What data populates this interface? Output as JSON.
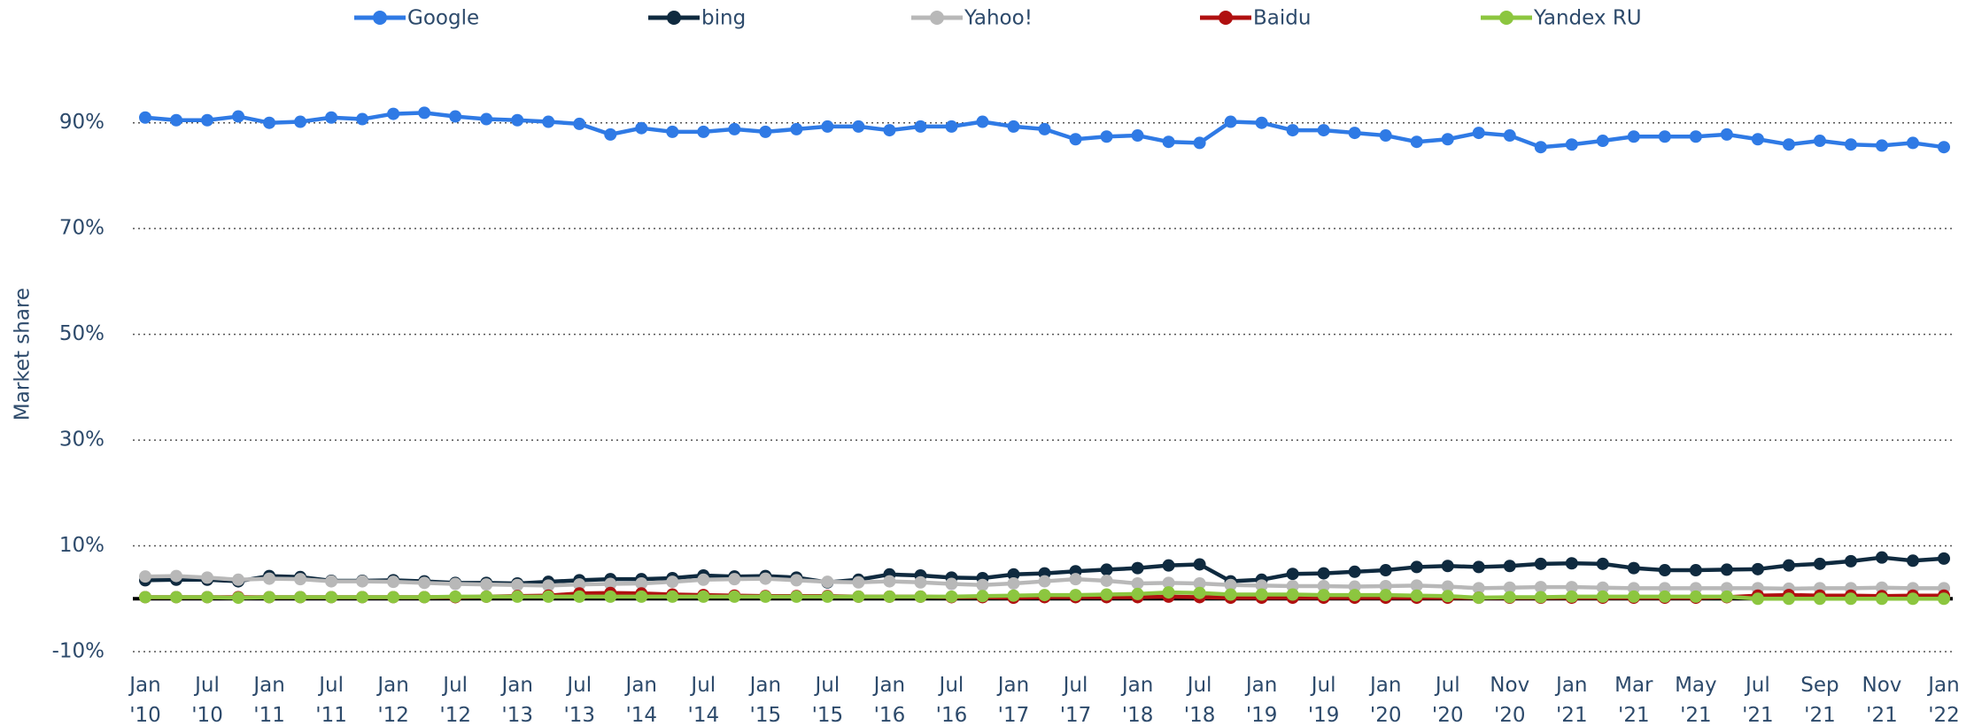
{
  "chart_data": {
    "type": "line",
    "y_label": "Market share",
    "categories": [
      "Jan\n'10",
      null,
      "Jul\n'10",
      null,
      "Jan\n'11",
      null,
      "Jul\n'11",
      null,
      "Jan\n'12",
      null,
      "Jul\n'12",
      null,
      "Jan\n'13",
      null,
      "Jul\n'13",
      null,
      "Jan\n'14",
      null,
      "Jul\n'14",
      null,
      "Jan\n'15",
      null,
      "Jul\n'15",
      null,
      "Jan\n'16",
      null,
      "Jul\n'16",
      null,
      "Jan\n'17",
      null,
      "Jul\n'17",
      null,
      "Jan\n'18",
      null,
      "Jul\n'18",
      null,
      "Jan\n'19",
      null,
      "Jul\n'19",
      null,
      "Jan\n'20",
      null,
      "Jul\n'20",
      null,
      "Nov\n'20",
      null,
      "Jan\n'21",
      null,
      "Mar\n'21",
      null,
      "May\n'21",
      null,
      "Jul\n'21",
      null,
      "Sep\n'21",
      null,
      "Nov\n'21",
      null,
      "Jan\n'22"
    ],
    "series": [
      {
        "name": "Google",
        "color": "#2f7ae5",
        "values": [
          91.0,
          90.5,
          90.5,
          91.2,
          90.0,
          90.2,
          91.0,
          90.7,
          91.7,
          91.9,
          91.2,
          90.7,
          90.5,
          90.2,
          89.8,
          87.8,
          89.0,
          88.3,
          88.3,
          88.8,
          88.3,
          88.8,
          89.3,
          89.3,
          88.6,
          89.3,
          89.3,
          90.2,
          89.3,
          88.8,
          86.9,
          87.4,
          87.6,
          86.4,
          86.2,
          90.2,
          90.0,
          88.6,
          88.6,
          88.1,
          87.6,
          86.4,
          86.9,
          88.1,
          87.6,
          85.4,
          85.9,
          86.6,
          87.4,
          87.4,
          87.4,
          87.8,
          86.9,
          85.9,
          86.6,
          85.9,
          85.7,
          86.2,
          85.4
        ]
      },
      {
        "name": "bing",
        "color": "#0f2a3f",
        "values": [
          3.5,
          3.6,
          3.6,
          3.3,
          4.3,
          4.1,
          3.4,
          3.4,
          3.5,
          3.3,
          3.0,
          3.0,
          2.9,
          3.2,
          3.5,
          3.7,
          3.7,
          3.9,
          4.4,
          4.2,
          4.3,
          4.0,
          3.1,
          3.6,
          4.6,
          4.4,
          4.0,
          3.9,
          4.6,
          4.8,
          5.2,
          5.5,
          5.8,
          6.3,
          6.5,
          3.3,
          3.6,
          4.7,
          4.8,
          5.1,
          5.4,
          6.0,
          6.2,
          6.0,
          6.2,
          6.6,
          6.7,
          6.6,
          5.8,
          5.4,
          5.4,
          5.5,
          5.6,
          6.3,
          6.6,
          7.1,
          7.8,
          7.2,
          7.6
        ]
      },
      {
        "name": "Yahoo!",
        "color": "#b8b8b8",
        "values": [
          4.2,
          4.3,
          4.0,
          3.6,
          3.8,
          3.7,
          3.3,
          3.3,
          3.2,
          3.0,
          2.8,
          2.7,
          2.6,
          2.5,
          2.7,
          2.8,
          2.9,
          3.2,
          3.6,
          3.7,
          3.8,
          3.5,
          3.2,
          3.1,
          3.3,
          3.1,
          2.8,
          2.6,
          2.9,
          3.3,
          3.7,
          3.4,
          2.9,
          3.0,
          2.9,
          2.6,
          2.5,
          2.4,
          2.4,
          2.3,
          2.4,
          2.5,
          2.3,
          2.0,
          2.1,
          2.2,
          2.2,
          2.1,
          2.0,
          2.0,
          2.0,
          2.0,
          2.0,
          1.9,
          2.0,
          2.0,
          2.1,
          2.0,
          2.0
        ]
      },
      {
        "name": "Baidu",
        "color": "#b01010",
        "values": [
          0.3,
          0.3,
          0.3,
          0.3,
          0.3,
          0.3,
          0.3,
          0.3,
          0.3,
          0.3,
          0.3,
          0.4,
          0.5,
          0.6,
          1.0,
          1.1,
          1.0,
          0.8,
          0.7,
          0.6,
          0.5,
          0.5,
          0.5,
          0.4,
          0.4,
          0.4,
          0.3,
          0.3,
          0.2,
          0.3,
          0.3,
          0.3,
          0.3,
          0.4,
          0.3,
          0.2,
          0.2,
          0.2,
          0.2,
          0.2,
          0.2,
          0.2,
          0.2,
          0.2,
          0.2,
          0.2,
          0.2,
          0.2,
          0.2,
          0.2,
          0.2,
          0.3,
          0.6,
          0.7,
          0.6,
          0.6,
          0.5,
          0.6,
          0.6
        ]
      },
      {
        "name": "Yandex RU",
        "color": "#8cc63f",
        "values": [
          0.3,
          0.3,
          0.3,
          0.2,
          0.3,
          0.3,
          0.3,
          0.3,
          0.3,
          0.3,
          0.4,
          0.4,
          0.4,
          0.4,
          0.4,
          0.4,
          0.4,
          0.4,
          0.4,
          0.4,
          0.4,
          0.4,
          0.4,
          0.4,
          0.4,
          0.4,
          0.4,
          0.5,
          0.6,
          0.7,
          0.7,
          0.8,
          0.9,
          1.2,
          1.1,
          0.8,
          0.8,
          0.8,
          0.7,
          0.7,
          0.7,
          0.6,
          0.5,
          0.2,
          0.3,
          0.3,
          0.4,
          0.4,
          0.4,
          0.4,
          0.4,
          0.4,
          0.0,
          0.0,
          0.0,
          0.0,
          0.0,
          0.0,
          0.0
        ]
      }
    ],
    "ylim": [
      -10,
      100
    ],
    "yticks": [
      {
        "value": -10,
        "label": "-10%"
      },
      {
        "value": 10,
        "label": "10%"
      },
      {
        "value": 30,
        "label": "30%"
      },
      {
        "value": 50,
        "label": "50%"
      },
      {
        "value": 70,
        "label": "70%"
      },
      {
        "value": 90,
        "label": "90%"
      }
    ],
    "grid": true,
    "legend": "top"
  }
}
